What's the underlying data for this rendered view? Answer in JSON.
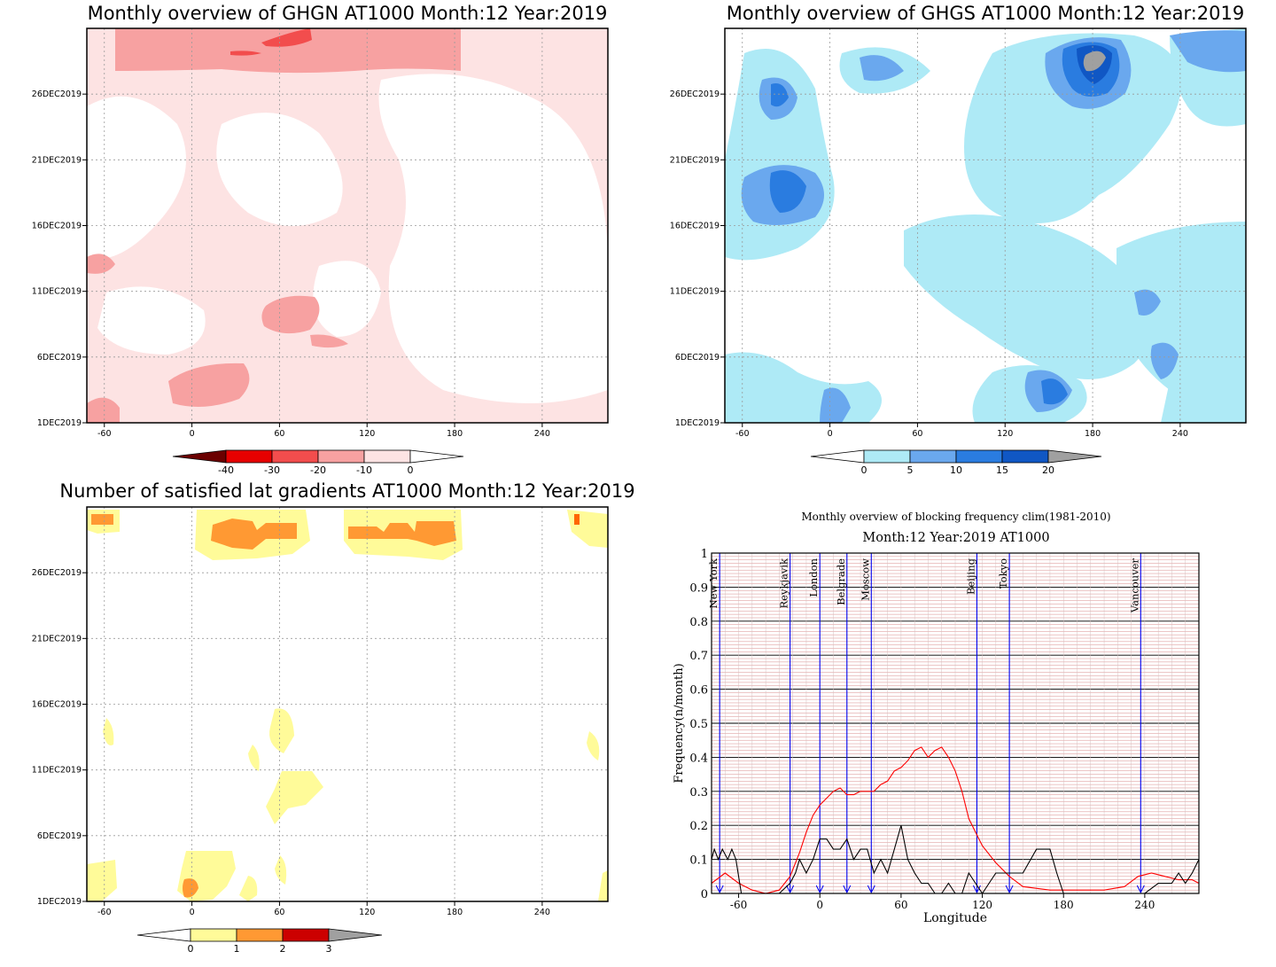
{
  "panels": {
    "ghgn": {
      "title": "Monthly overview of GHGN AT1000 Month:12 Year:2019",
      "x_ticks": [
        "-60",
        "0",
        "60",
        "120",
        "180",
        "240"
      ],
      "y_ticks": [
        "1DEC2019",
        "6DEC2019",
        "11DEC2019",
        "16DEC2019",
        "21DEC2019",
        "26DEC2019"
      ],
      "colorbar": {
        "labels": [
          "-40",
          "-30",
          "-20",
          "-10",
          "0"
        ],
        "colors": [
          "#6b0000",
          "#e60000",
          "#f24d4d",
          "#f7a1a1",
          "#fde3e3",
          "#ffffff"
        ]
      }
    },
    "ghgs": {
      "title": "Monthly overview of GHGS AT1000 Month:12 Year:2019",
      "x_ticks": [
        "-60",
        "0",
        "60",
        "120",
        "180",
        "240"
      ],
      "y_ticks": [
        "1DEC2019",
        "6DEC2019",
        "11DEC2019",
        "16DEC2019",
        "21DEC2019",
        "26DEC2019"
      ],
      "colorbar": {
        "labels": [
          "0",
          "5",
          "10",
          "15",
          "20"
        ],
        "colors": [
          "#ffffff",
          "#aeeaf6",
          "#6aa8ee",
          "#2a7ce0",
          "#1057c4",
          "#a0a0a0"
        ]
      }
    },
    "gradients": {
      "title": "Number of satisfied lat gradients AT1000 Month:12 Year:2019",
      "x_ticks": [
        "-60",
        "0",
        "60",
        "120",
        "180",
        "240"
      ],
      "y_ticks": [
        "1DEC2019",
        "6DEC2019",
        "11DEC2019",
        "16DEC2019",
        "21DEC2019",
        "26DEC2019"
      ],
      "colorbar": {
        "labels": [
          "0",
          "1",
          "2",
          "3"
        ],
        "colors": [
          "#ffffff",
          "#fffb99",
          "#ff9933",
          "#cc0000",
          "#a0a0a0"
        ]
      }
    }
  },
  "chart_data": {
    "type": "line",
    "title": "Monthly overview of blocking frequency clim(1981-2010)",
    "subtitle": "Month:12 Year:2019  AT1000",
    "xlabel": "Longitude",
    "ylabel": "Frequency(n/month)",
    "xlim": [
      -80,
      280
    ],
    "ylim": [
      0,
      1
    ],
    "x_ticks": [
      -60,
      0,
      60,
      120,
      180,
      240
    ],
    "y_ticks": [
      0,
      0.1,
      0.2,
      0.3,
      0.4,
      0.5,
      0.6,
      0.7,
      0.8,
      0.9,
      1
    ],
    "grid": true,
    "cities": [
      {
        "name": "New York",
        "lon": -74
      },
      {
        "name": "Reykjavik",
        "lon": -22
      },
      {
        "name": "London",
        "lon": 0
      },
      {
        "name": "Belgrade",
        "lon": 20
      },
      {
        "name": "Moscow",
        "lon": 38
      },
      {
        "name": "Beijing",
        "lon": 116
      },
      {
        "name": "Tokyo",
        "lon": 140
      },
      {
        "name": "Vancouver",
        "lon": 237
      }
    ],
    "series": [
      {
        "color": "#ff0000",
        "x": [
          -80,
          -70,
          -60,
          -50,
          -40,
          -30,
          -22,
          -15,
          -10,
          -5,
          0,
          5,
          10,
          15,
          20,
          25,
          30,
          35,
          40,
          45,
          50,
          55,
          60,
          65,
          70,
          75,
          80,
          85,
          90,
          95,
          100,
          105,
          110,
          115,
          120,
          130,
          140,
          150,
          170,
          190,
          210,
          225,
          235,
          245,
          255,
          265,
          275,
          280
        ],
        "y": [
          0.03,
          0.06,
          0.03,
          0.01,
          0.0,
          0.01,
          0.05,
          0.12,
          0.18,
          0.23,
          0.26,
          0.28,
          0.3,
          0.31,
          0.29,
          0.29,
          0.3,
          0.3,
          0.3,
          0.32,
          0.33,
          0.36,
          0.37,
          0.39,
          0.42,
          0.43,
          0.4,
          0.42,
          0.43,
          0.4,
          0.36,
          0.3,
          0.22,
          0.18,
          0.14,
          0.09,
          0.05,
          0.02,
          0.01,
          0.01,
          0.01,
          0.02,
          0.05,
          0.06,
          0.05,
          0.04,
          0.04,
          0.03
        ]
      },
      {
        "color": "#000000",
        "x": [
          -80,
          -78,
          -75,
          -72,
          -68,
          -65,
          -62,
          -58,
          -50,
          -40,
          -30,
          -22,
          -18,
          -15,
          -10,
          -5,
          0,
          5,
          10,
          15,
          20,
          25,
          30,
          35,
          40,
          45,
          50,
          55,
          60,
          65,
          70,
          75,
          80,
          85,
          90,
          95,
          100,
          105,
          110,
          115,
          120,
          125,
          130,
          140,
          150,
          160,
          165,
          170,
          175,
          180,
          190,
          200,
          220,
          240,
          250,
          260,
          265,
          270,
          275,
          280
        ],
        "y": [
          0.1,
          0.13,
          0.1,
          0.13,
          0.1,
          0.13,
          0.1,
          0.0,
          0.0,
          0.0,
          0.0,
          0.03,
          0.06,
          0.1,
          0.06,
          0.1,
          0.16,
          0.16,
          0.13,
          0.13,
          0.16,
          0.1,
          0.13,
          0.13,
          0.06,
          0.1,
          0.06,
          0.13,
          0.2,
          0.1,
          0.06,
          0.03,
          0.03,
          0.0,
          0.0,
          0.03,
          0.0,
          0.0,
          0.06,
          0.03,
          0.0,
          0.03,
          0.06,
          0.06,
          0.06,
          0.13,
          0.13,
          0.13,
          0.06,
          0.0,
          0.0,
          0.0,
          0.0,
          0.0,
          0.03,
          0.03,
          0.06,
          0.03,
          0.06,
          0.1
        ]
      }
    ]
  }
}
